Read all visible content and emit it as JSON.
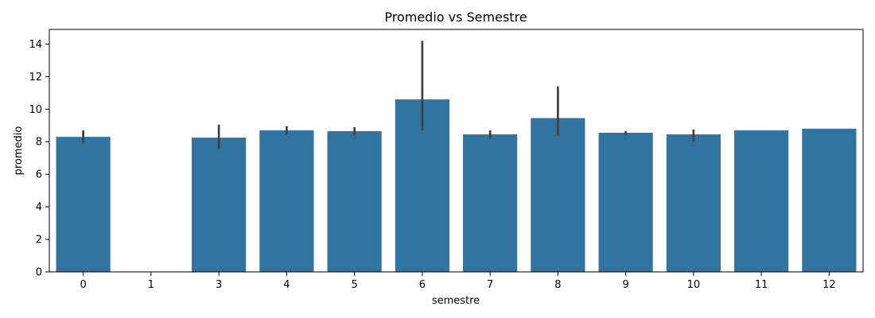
{
  "chart_data": {
    "type": "bar",
    "title": "Promedio vs Semestre",
    "xlabel": "semestre",
    "ylabel": "promedio",
    "categories": [
      "0",
      "1",
      "3",
      "4",
      "5",
      "6",
      "7",
      "8",
      "9",
      "10",
      "11",
      "12"
    ],
    "values": [
      8.3,
      0.0,
      8.25,
      8.7,
      8.65,
      10.6,
      8.45,
      9.45,
      8.55,
      8.45,
      8.7,
      8.8
    ],
    "error_bars": [
      [
        7.9,
        8.7
      ],
      null,
      [
        7.55,
        9.05
      ],
      [
        8.45,
        8.95
      ],
      [
        8.4,
        8.9
      ],
      [
        8.7,
        14.2
      ],
      [
        8.2,
        8.7
      ],
      [
        8.35,
        11.4
      ],
      [
        8.4,
        8.65
      ],
      [
        8.0,
        8.75
      ],
      null,
      null
    ],
    "ylim": [
      0,
      14.9
    ],
    "yticks": [
      0,
      2,
      4,
      6,
      8,
      10,
      12,
      14
    ],
    "grid": false,
    "colors": {
      "bar": "#3274a1",
      "error_bar": "#3f3f3f",
      "axis": "#000000"
    }
  }
}
